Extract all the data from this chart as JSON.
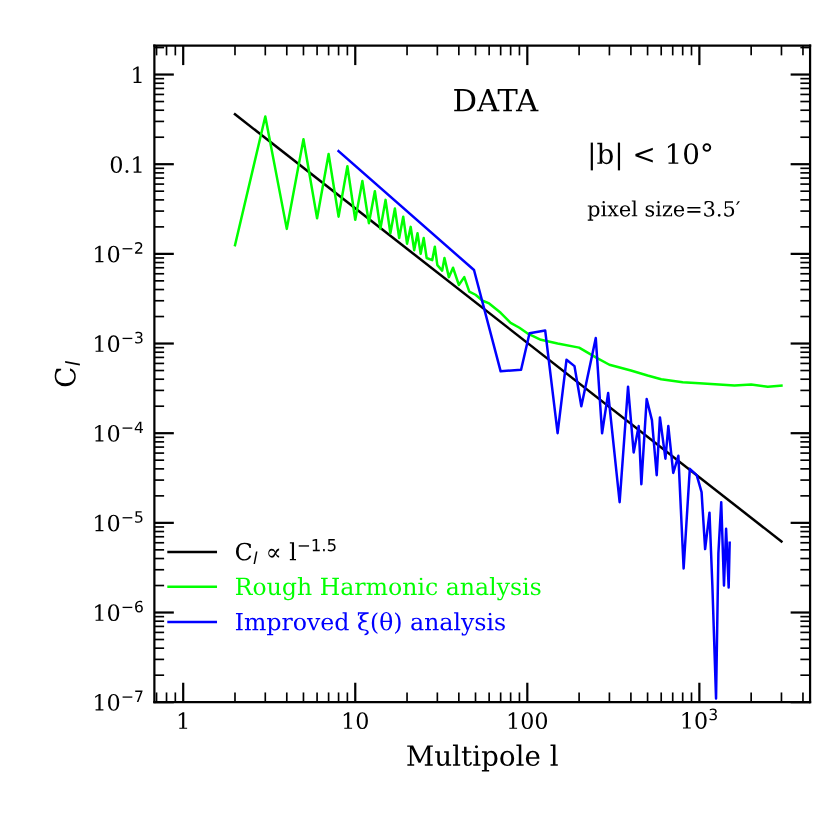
{
  "chart_data": {
    "type": "line",
    "xlabel": "Multipole l",
    "ylabel": "C$_{l}$",
    "log": "xy",
    "xlim": [
      0.68,
      4400
    ],
    "ylim": [
      1e-07,
      2.1
    ],
    "xticks": [
      1,
      10,
      100,
      {
        "value": 1000,
        "label": "10$^{3}$"
      }
    ],
    "yticks": [
      {
        "value": 1e-07,
        "label": "10$^{−7}$"
      },
      {
        "value": 1e-06,
        "label": "10$^{−6}$"
      },
      {
        "value": 1e-05,
        "label": "10$^{−5}$"
      },
      {
        "value": 0.0001,
        "label": "10$^{−4}$"
      },
      {
        "value": 0.001,
        "label": "10$^{−3}$"
      },
      {
        "value": 0.01,
        "label": "10$^{−2}$"
      },
      0.1,
      1
    ],
    "annotations": [
      "DATA",
      "|b| < 10°",
      "pixel size=3.5′"
    ],
    "legend": "bottom left",
    "grid": false,
    "series": [
      {
        "name": "C$_{l}$ ∝ l$^{−1.5}$",
        "color": "#000000",
        "x": [
          2,
          3000
        ],
        "values": [
          0.36,
          6.2e-06
        ]
      },
      {
        "name": "Rough Harmonic analysis",
        "color": "#00ff00",
        "x": [
          2,
          3,
          4,
          5,
          6,
          7,
          8,
          9,
          10,
          11,
          12,
          13,
          14,
          15,
          16,
          17,
          18,
          19,
          20,
          21,
          22,
          23,
          24,
          25,
          26,
          28,
          29,
          30,
          32,
          33,
          35,
          37,
          40,
          43,
          46,
          50,
          55,
          60,
          70,
          80,
          90,
          100,
          120,
          150,
          200,
          250,
          300,
          400,
          500,
          600,
          800,
          1000,
          1300,
          1600,
          2000,
          2500,
          3000
        ],
        "values": [
          0.0125,
          0.34,
          0.019,
          0.19,
          0.025,
          0.13,
          0.026,
          0.095,
          0.024,
          0.065,
          0.022,
          0.05,
          0.019,
          0.04,
          0.017,
          0.032,
          0.015,
          0.026,
          0.013,
          0.02,
          0.011,
          0.017,
          0.01,
          0.015,
          0.009,
          0.0085,
          0.012,
          0.0075,
          0.0065,
          0.009,
          0.0055,
          0.007,
          0.0045,
          0.0055,
          0.0038,
          0.0035,
          0.003,
          0.0028,
          0.0022,
          0.0017,
          0.0015,
          0.0013,
          0.0011,
          0.001,
          0.0009,
          0.0007,
          0.00058,
          0.0005,
          0.00044,
          0.0004,
          0.00037,
          0.00036,
          0.00035,
          0.00034,
          0.00035,
          0.00033,
          0.00034
        ]
      },
      {
        "name": "Improved ξ(θ) analysis",
        "color": "#0000ff",
        "x": [
          8,
          49,
          70,
          92,
          103,
          127,
          150,
          169,
          188,
          206,
          220,
          250,
          272,
          295,
          344,
          385,
          415,
          444,
          460,
          494,
          530,
          565,
          590,
          635,
          660,
          705,
          755,
          810,
          880,
          965,
          1030,
          1080,
          1145,
          1190,
          1250,
          1290,
          1340,
          1390,
          1430,
          1480,
          1500
        ],
        "values": [
          0.14,
          0.0066,
          0.00049,
          0.00051,
          0.0013,
          0.0014,
          0.0001,
          0.00066,
          0.00056,
          0.0002,
          0.00036,
          0.00115,
          0.0001,
          0.00028,
          1.7e-05,
          0.00033,
          6.1e-05,
          0.00012,
          2.7e-05,
          0.00024,
          0.00014,
          3.4e-05,
          0.00015,
          5.2e-05,
          0.00012,
          3.6e-05,
          5.6e-05,
          3.1e-06,
          4e-05,
          3.4e-05,
          2.2e-05,
          5.1e-06,
          1.3e-05,
          2e-06,
          1.1e-07,
          4.6e-06,
          1.7e-05,
          2e-06,
          8.6e-06,
          1.9e-06,
          6e-06
        ]
      }
    ]
  }
}
